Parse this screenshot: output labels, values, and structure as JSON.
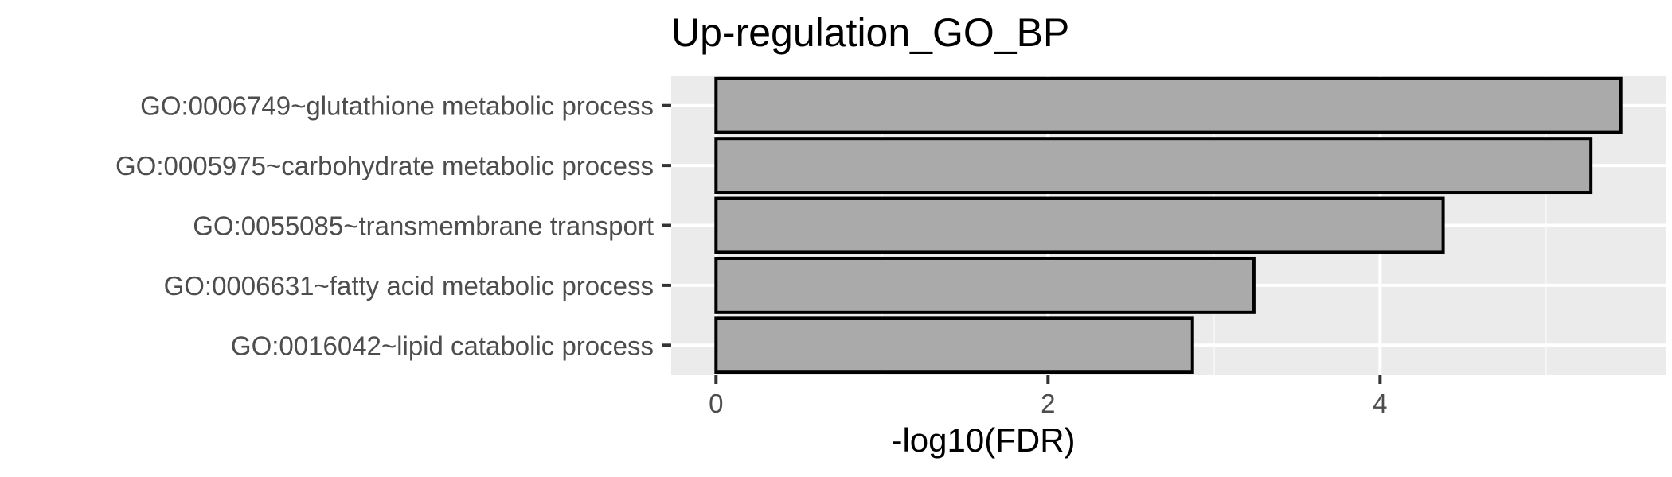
{
  "colors": {
    "panel_background": "#ebebeb",
    "grid_major": "#ffffff",
    "grid_minor": "#f5f5f5",
    "bar_fill": "#aaaaaa",
    "bar_outline": "#000000",
    "tick_text": "#4d4d4d",
    "tick_mark": "#333333"
  },
  "chart_data": {
    "type": "bar",
    "orientation": "horizontal",
    "title": "Up-regulation_GO_BP",
    "xlabel": "-log10(FDR)",
    "ylabel": "",
    "categories": [
      "GO:0006749~glutathione metabolic process",
      "GO:0005975~carbohydrate metabolic process",
      "GO:0055085~transmembrane transport",
      "GO:0006631~fatty acid metabolic process",
      "GO:0016042~lipid catabolic process"
    ],
    "values": [
      5.45,
      5.27,
      4.38,
      3.24,
      2.87
    ],
    "xlim": [
      -0.27,
      5.72
    ],
    "xticks": [
      0,
      2,
      4
    ],
    "xtick_labels": [
      "0",
      "2",
      "4"
    ],
    "grid": true,
    "legend": "none"
  }
}
